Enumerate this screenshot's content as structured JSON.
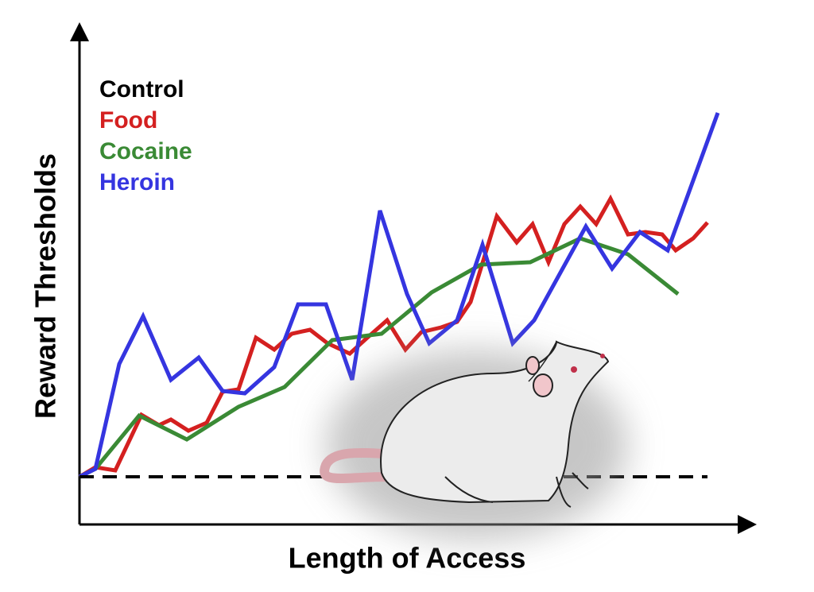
{
  "chart_data": {
    "type": "line",
    "x_label": "Length of Access",
    "y_label": "Reward Thresholds",
    "xlim": [
      0,
      42
    ],
    "ylim": [
      0,
      60
    ],
    "legend": "top-left",
    "series": [
      {
        "name": "Control",
        "color": "#000000",
        "style": "dashed",
        "x": [
          0,
          39.5
        ],
        "values": [
          6,
          6
        ]
      },
      {
        "name": "Food",
        "color": "#d42020",
        "style": "solid",
        "x": [
          0,
          1,
          2.25,
          3.9,
          5,
          5.75,
          6.85,
          8,
          9,
          10,
          11.1,
          12.25,
          13.35,
          14.5,
          15.6,
          17,
          18.1,
          19.35,
          20.5,
          21.5,
          22.75,
          23.75,
          24.6,
          26.25,
          27.5,
          28.5,
          29.5,
          30.5,
          31.5,
          32.5,
          33.4,
          34.5,
          35.6,
          36.65,
          37.5,
          38.6,
          39.5
        ],
        "values": [
          6,
          7.2,
          6.8,
          13.8,
          12.5,
          13.2,
          11.8,
          12.8,
          16.7,
          17,
          23.5,
          22,
          24,
          24.5,
          22.8,
          21.5,
          23.5,
          25.7,
          22,
          24.2,
          24.8,
          25.5,
          28,
          38.8,
          35.5,
          37.8,
          33,
          37.8,
          40,
          37.8,
          41,
          36.5,
          36.8,
          36.5,
          34.5,
          36,
          38
        ]
      },
      {
        "name": "Cocaine",
        "color": "#3a8a35",
        "style": "solid",
        "x": [
          0,
          1,
          3.75,
          6.75,
          10,
          12.9,
          15.9,
          19,
          22.15,
          25.25,
          28.35,
          31.5,
          34.5,
          37.65
        ],
        "values": [
          6,
          7,
          13.7,
          10.7,
          14.8,
          17.3,
          23.2,
          24,
          29.2,
          32.7,
          33,
          36,
          34,
          29
        ]
      },
      {
        "name": "Heroin",
        "color": "#3535e0",
        "style": "solid",
        "x": [
          0,
          1,
          2.5,
          4,
          5.75,
          7.5,
          9,
          10.4,
          12.25,
          13.75,
          15.5,
          17.15,
          18.9,
          20.6,
          22,
          23.75,
          25.35,
          27.25,
          28.6,
          31.85,
          33.5,
          35.25,
          37,
          40.15
        ],
        "values": [
          6,
          7,
          20.2,
          26.2,
          18.2,
          21,
          16.8,
          16.5,
          19.8,
          27.7,
          27.7,
          18.2,
          39.5,
          29,
          22.8,
          25.7,
          35.2,
          22.8,
          25.7,
          37.5,
          32.2,
          36.8,
          34.5,
          51.8
        ]
      }
    ]
  }
}
